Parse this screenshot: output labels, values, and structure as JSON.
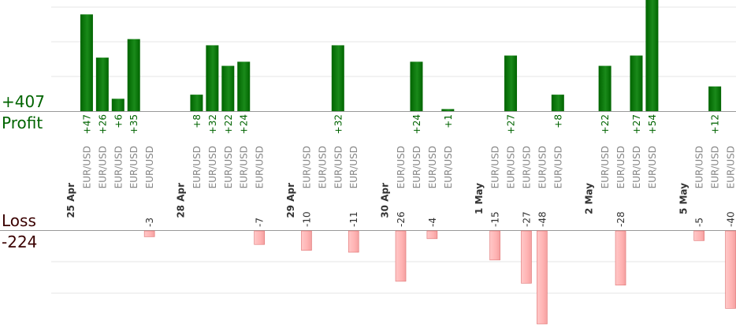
{
  "summary": {
    "profit_total": "+407",
    "profit_label": "Profit",
    "loss_label": "Loss",
    "loss_total": "-224"
  },
  "colors": {
    "profit_bar": "#006400",
    "profit_bar_light": "#1a8a1a",
    "profit_text": "#006400",
    "loss_bar": "#ffb3b3",
    "loss_bar_edge": "#e07070",
    "loss_text": "#333333",
    "instrument_text": "#888888",
    "date_text": "#333333",
    "grid": "#e6e6e6",
    "baseline": "#999999"
  },
  "chart_data": {
    "type": "bar",
    "profit_ylim": [
      0,
      54
    ],
    "loss_ylim": [
      0,
      48
    ],
    "grid": true,
    "slots": [
      {
        "kind": "date",
        "label": "25 Apr"
      },
      {
        "kind": "trade",
        "instrument": "EUR/USD",
        "value": 47,
        "label": "+47"
      },
      {
        "kind": "trade",
        "instrument": "EUR/USD",
        "value": 26,
        "label": "+26"
      },
      {
        "kind": "trade",
        "instrument": "EUR/USD",
        "value": 6,
        "label": "+6"
      },
      {
        "kind": "trade",
        "instrument": "EUR/USD",
        "value": 35,
        "label": "+35"
      },
      {
        "kind": "trade",
        "instrument": "EUR/USD",
        "value": -3,
        "label": "-3"
      },
      {
        "kind": "gap"
      },
      {
        "kind": "date",
        "label": "28 Apr"
      },
      {
        "kind": "trade",
        "instrument": "EUR/USD",
        "value": 8,
        "label": "+8"
      },
      {
        "kind": "trade",
        "instrument": "EUR/USD",
        "value": 32,
        "label": "+32"
      },
      {
        "kind": "trade",
        "instrument": "EUR/USD",
        "value": 22,
        "label": "+22"
      },
      {
        "kind": "trade",
        "instrument": "EUR/USD",
        "value": 24,
        "label": "+24"
      },
      {
        "kind": "trade",
        "instrument": "EUR/USD",
        "value": -7,
        "label": "-7"
      },
      {
        "kind": "gap"
      },
      {
        "kind": "date",
        "label": "29 Apr"
      },
      {
        "kind": "trade",
        "instrument": "EUR/USD",
        "value": -10,
        "label": "-10"
      },
      {
        "kind": "trade",
        "instrument": "EUR/USD",
        "value": 0,
        "label": ""
      },
      {
        "kind": "trade",
        "instrument": "EUR/USD",
        "value": 32,
        "label": "+32"
      },
      {
        "kind": "trade",
        "instrument": "EUR/USD",
        "value": -11,
        "label": "-11"
      },
      {
        "kind": "gap"
      },
      {
        "kind": "date",
        "label": "30 Apr"
      },
      {
        "kind": "trade",
        "instrument": "EUR/USD",
        "value": -26,
        "label": "-26"
      },
      {
        "kind": "trade",
        "instrument": "EUR/USD",
        "value": 24,
        "label": "+24"
      },
      {
        "kind": "trade",
        "instrument": "EUR/USD",
        "value": -4,
        "label": "-4"
      },
      {
        "kind": "trade",
        "instrument": "EUR/USD",
        "value": 1,
        "label": "+1"
      },
      {
        "kind": "gap"
      },
      {
        "kind": "date",
        "label": "1 May"
      },
      {
        "kind": "trade",
        "instrument": "EUR/USD",
        "value": -15,
        "label": "-15"
      },
      {
        "kind": "trade",
        "instrument": "EUR/USD",
        "value": 27,
        "label": "+27"
      },
      {
        "kind": "trade",
        "instrument": "EUR/USD",
        "value": -27,
        "label": "-27"
      },
      {
        "kind": "trade",
        "instrument": "EUR/USD",
        "value": -48,
        "label": "-48"
      },
      {
        "kind": "trade",
        "instrument": "EUR/USD",
        "value": 8,
        "label": "+8"
      },
      {
        "kind": "gap"
      },
      {
        "kind": "date",
        "label": "2 May"
      },
      {
        "kind": "trade",
        "instrument": "EUR/USD",
        "value": 22,
        "label": "+22"
      },
      {
        "kind": "trade",
        "instrument": "EUR/USD",
        "value": -28,
        "label": "-28"
      },
      {
        "kind": "trade",
        "instrument": "EUR/USD",
        "value": 27,
        "label": "+27"
      },
      {
        "kind": "trade",
        "instrument": "EUR/USD",
        "value": 54,
        "label": "+54"
      },
      {
        "kind": "gap"
      },
      {
        "kind": "date",
        "label": "5 May"
      },
      {
        "kind": "trade",
        "instrument": "EUR/USD",
        "value": -5,
        "label": "-5"
      },
      {
        "kind": "trade",
        "instrument": "EUR/USD",
        "value": 12,
        "label": "+12"
      },
      {
        "kind": "trade",
        "instrument": "EUR/USD",
        "value": -40,
        "label": "-40"
      }
    ]
  }
}
